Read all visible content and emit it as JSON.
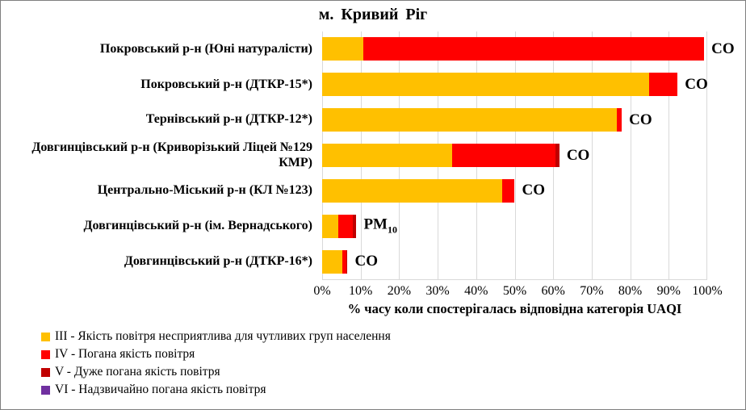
{
  "frame": {
    "background": "#FFFFFF",
    "border_color": "#7F7F7F",
    "gridline_color": "#D9D9D9"
  },
  "chart_data": {
    "type": "bar",
    "orientation": "horizontal-stacked",
    "title": "м. Кривий  Ріг",
    "xlabel": "% часу коли спостерігалась відповідна категорія UAQI",
    "xlim": [
      0,
      100
    ],
    "x_ticks": [
      "0%",
      "10%",
      "20%",
      "30%",
      "40%",
      "50%",
      "60%",
      "70%",
      "80%",
      "90%",
      "100%"
    ],
    "grid": "vertical",
    "legend_position": "bottom-left",
    "series": [
      {
        "name": "III - Якість повітря несприятлива для чутливих груп населення",
        "color": "#FFC000"
      },
      {
        "name": "IV - Погана якість повітря",
        "color": "#FF0000"
      },
      {
        "name": "V - Дуже погана якість повітря",
        "color": "#C00000"
      },
      {
        "name": "VI - Надзвичайно погана якість повітря",
        "color": "#7030A0"
      }
    ],
    "rows": [
      {
        "category": "Покровський р-н (Юні натуралісти)",
        "values": [
          10.7,
          88.5,
          0,
          0
        ],
        "pollutant": "CO",
        "pollutant_sub": ""
      },
      {
        "category": "Покровський р-н (ДТКР-15*)",
        "values": [
          85.0,
          7.3,
          0,
          0
        ],
        "pollutant": "CO",
        "pollutant_sub": ""
      },
      {
        "category": "Тернівський р-н (ДТКР-12*)",
        "values": [
          76.5,
          1.3,
          0,
          0
        ],
        "pollutant": "CO",
        "pollutant_sub": ""
      },
      {
        "category": "Довгинцівський р-н (Криворізький Ліцей №129 КМР)",
        "values": [
          33.7,
          26.9,
          1.0,
          0
        ],
        "pollutant": "CO",
        "pollutant_sub": ""
      },
      {
        "category": "Центрально-Міський р-н (КЛ №123)",
        "values": [
          46.7,
          3.3,
          0,
          0
        ],
        "pollutant": "CO",
        "pollutant_sub": ""
      },
      {
        "category": "Довгинцівський р-н (ім. Вернадського)",
        "values": [
          4.2,
          3.7,
          1.0,
          0
        ],
        "pollutant": "PM",
        "pollutant_sub": "10"
      },
      {
        "category": "Довгинцівський р-н (ДТКР-16*)",
        "values": [
          5.3,
          0.9,
          0.4,
          0
        ],
        "pollutant": "CO",
        "pollutant_sub": ""
      }
    ]
  }
}
